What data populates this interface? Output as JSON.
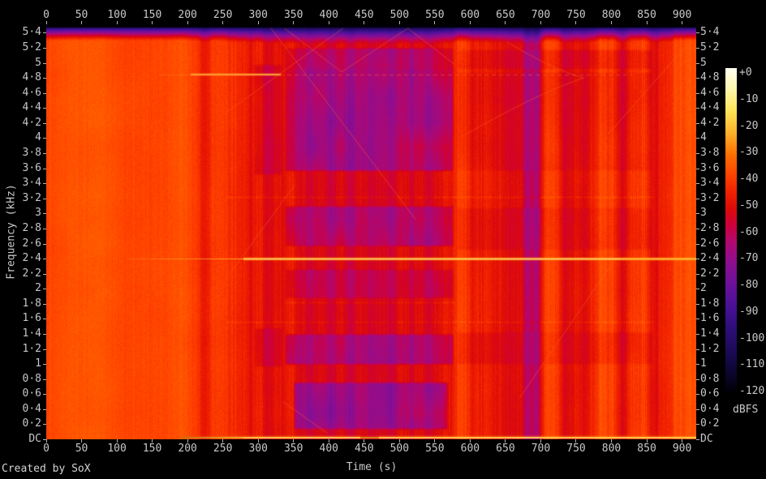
{
  "credit": "Created by SoX",
  "colors": {
    "background": "#000000",
    "tick_label": "#c8c8c8",
    "tick_mark": "#b4b4b4"
  },
  "chart_data": {
    "type": "heatmap",
    "subtype": "audio-spectrogram",
    "title": "",
    "xlabel": "Time (s)",
    "ylabel": "Frequency (kHz)",
    "x_range_s": [
      0,
      920
    ],
    "y_range_khz": [
      0,
      5.5125
    ],
    "grid": false,
    "x_tick_labels": [
      "0",
      "50",
      "100",
      "150",
      "200",
      "250",
      "300",
      "350",
      "400",
      "450",
      "500",
      "550",
      "600",
      "650",
      "700",
      "750",
      "800",
      "850",
      "900"
    ],
    "x_tick_values": [
      0,
      50,
      100,
      150,
      200,
      250,
      300,
      350,
      400,
      450,
      500,
      550,
      600,
      650,
      700,
      750,
      800,
      850,
      900
    ],
    "y_tick_labels": [
      "DC",
      "0·2",
      "0·4",
      "0·6",
      "0·8",
      "1",
      "1·2",
      "1·4",
      "1·6",
      "1·8",
      "2",
      "2·2",
      "2·4",
      "2·6",
      "2·8",
      "3",
      "3·2",
      "3·4",
      "3·6",
      "3·8",
      "4",
      "4·2",
      "4·4",
      "4·6",
      "4·8",
      "5",
      "5·2",
      "5·4"
    ],
    "y_tick_values": [
      0,
      0.2,
      0.4,
      0.6,
      0.8,
      1,
      1.2,
      1.4,
      1.6,
      1.8,
      2,
      2.2,
      2.4,
      2.6,
      2.8,
      3,
      3.2,
      3.4,
      3.6,
      3.8,
      4,
      4.2,
      4.4,
      4.6,
      4.8,
      5,
      5.2,
      5.4
    ],
    "colorbar": {
      "label": "dBFS",
      "tick_labels": [
        "+0",
        "-10",
        "-20",
        "-30",
        "-40",
        "-50",
        "-60",
        "-70",
        "-80",
        "-90",
        "-100",
        "-110",
        "-120"
      ],
      "tick_values": [
        0,
        -10,
        -20,
        -30,
        -40,
        -50,
        -60,
        -70,
        -80,
        -90,
        -100,
        -110,
        -120
      ],
      "palette_stops": [
        {
          "db": 0,
          "color": "#fffff2"
        },
        {
          "db": -8,
          "color": "#fff7a8"
        },
        {
          "db": -16,
          "color": "#ffe254"
        },
        {
          "db": -24,
          "color": "#ffb02a"
        },
        {
          "db": -32,
          "color": "#ff6e00"
        },
        {
          "db": -40,
          "color": "#ff4000"
        },
        {
          "db": -46,
          "color": "#f02000"
        },
        {
          "db": -52,
          "color": "#dc0a0a"
        },
        {
          "db": -58,
          "color": "#cd003c"
        },
        {
          "db": -64,
          "color": "#b20870"
        },
        {
          "db": -72,
          "color": "#8c0e91"
        },
        {
          "db": -80,
          "color": "#6a109b"
        },
        {
          "db": -88,
          "color": "#481096"
        },
        {
          "db": -96,
          "color": "#2d0e78"
        },
        {
          "db": -104,
          "color": "#1c0a58"
        },
        {
          "db": -112,
          "color": "#0c0630"
        },
        {
          "db": -120,
          "color": "#000002"
        }
      ]
    },
    "features": {
      "base_segments": [
        [
          0,
          200,
          -38
        ],
        [
          200,
          218,
          -40
        ],
        [
          218,
          232,
          -44
        ],
        [
          232,
          256,
          -40
        ],
        [
          256,
          300,
          -46
        ],
        [
          300,
          336,
          -49
        ],
        [
          336,
          577,
          -52
        ],
        [
          577,
          610,
          -45
        ],
        [
          610,
          656,
          -48
        ],
        [
          656,
          675,
          -51
        ],
        [
          675,
          700,
          -56
        ],
        [
          700,
          727,
          -43
        ],
        [
          727,
          760,
          -49
        ],
        [
          760,
          778,
          -46
        ],
        [
          778,
          807,
          -42
        ],
        [
          807,
          824,
          -47
        ],
        [
          824,
          853,
          -42
        ],
        [
          853,
          870,
          -47
        ],
        [
          870,
          887,
          -44
        ],
        [
          887,
          921,
          -38
        ]
      ],
      "stripes": [
        [
          222,
          10,
          -4
        ],
        [
          262,
          8,
          3
        ],
        [
          289,
          5,
          -4
        ],
        [
          304,
          4,
          3
        ],
        [
          314,
          7,
          -5
        ],
        [
          331,
          5,
          -3
        ],
        [
          347,
          7,
          4
        ],
        [
          371,
          5,
          -4
        ],
        [
          402,
          6,
          -5
        ],
        [
          431,
          7,
          -6
        ],
        [
          459,
          5,
          -4
        ],
        [
          489,
          6,
          -6
        ],
        [
          517,
          5,
          -4
        ],
        [
          541,
          5,
          -5
        ],
        [
          565,
          6,
          3
        ],
        [
          588,
          9,
          4
        ],
        [
          603,
          4,
          -4
        ],
        [
          624,
          5,
          3
        ],
        [
          652,
          5,
          -4
        ],
        [
          680,
          5,
          -7
        ],
        [
          693,
          5,
          -7
        ],
        [
          712,
          7,
          5
        ],
        [
          736,
          6,
          -5
        ],
        [
          762,
          6,
          -5
        ],
        [
          788,
          7,
          3
        ],
        [
          815,
          6,
          -5
        ],
        [
          843,
          6,
          3
        ],
        [
          861,
          5,
          -4
        ],
        [
          876,
          4,
          -3
        ]
      ],
      "bands": [
        [
          3.55,
          4.95,
          336,
          578,
          -12
        ],
        [
          2.55,
          3.12,
          336,
          578,
          -10
        ],
        [
          1.86,
          2.28,
          336,
          578,
          -6
        ],
        [
          0.98,
          1.42,
          336,
          578,
          -12
        ],
        [
          0.12,
          0.78,
          348,
          570,
          -14
        ],
        [
          4.9,
          5.22,
          336,
          578,
          -10
        ],
        [
          3.5,
          5.0,
          292,
          336,
          -5
        ],
        [
          0.95,
          1.5,
          292,
          336,
          -4
        ],
        [
          3.55,
          4.9,
          578,
          860,
          -3
        ],
        [
          2.5,
          3.1,
          578,
          860,
          -3
        ],
        [
          0.98,
          1.45,
          578,
          860,
          -3
        ],
        [
          4.9,
          5.2,
          578,
          860,
          -4
        ]
      ],
      "dotted_rows": [
        [
          3.22,
          256,
          860
        ],
        [
          1.82,
          336,
          578
        ],
        [
          1.56,
          256,
          860
        ]
      ],
      "tones": [
        {
          "f_khz": 2.4,
          "t0": 115,
          "t1": 920,
          "bright_from": 279,
          "role": "main"
        },
        {
          "f_khz": 4.84,
          "t0": 160,
          "t1": 830,
          "solid": [
            204,
            331
          ],
          "role": "upper"
        },
        {
          "f_khz": 0.02,
          "t0": 190,
          "t1": 920,
          "bright_from": 300,
          "notch": [
            444,
            470
          ],
          "role": "dc"
        }
      ],
      "sweeps": [
        [
          252,
          4.32,
          420,
          5.46
        ],
        [
          318,
          5.46,
          523,
          2.92
        ],
        [
          337,
          5.46,
          418,
          4.88
        ],
        [
          418,
          4.88,
          512,
          5.46
        ],
        [
          512,
          5.46,
          578,
          4.98
        ],
        [
          256,
          2.15,
          352,
          3.38
        ],
        [
          670,
          0.55,
          802,
          2.35
        ],
        [
          795,
          4.05,
          908,
          5.25
        ],
        [
          335,
          0.5,
          398,
          0.08
        ]
      ],
      "sweep_curves": [
        [
          588,
          4.02,
          700,
          4.62,
          761,
          4.8
        ],
        [
          652,
          5.28,
          715,
          4.92,
          761,
          4.8
        ]
      ],
      "rolloff": {
        "start_khz": 5.2,
        "black_khz": 5.43
      },
      "noise": {
        "pixel_db": 1.7,
        "striation_db": 2.4,
        "blotch_db": 1.8
      }
    }
  }
}
